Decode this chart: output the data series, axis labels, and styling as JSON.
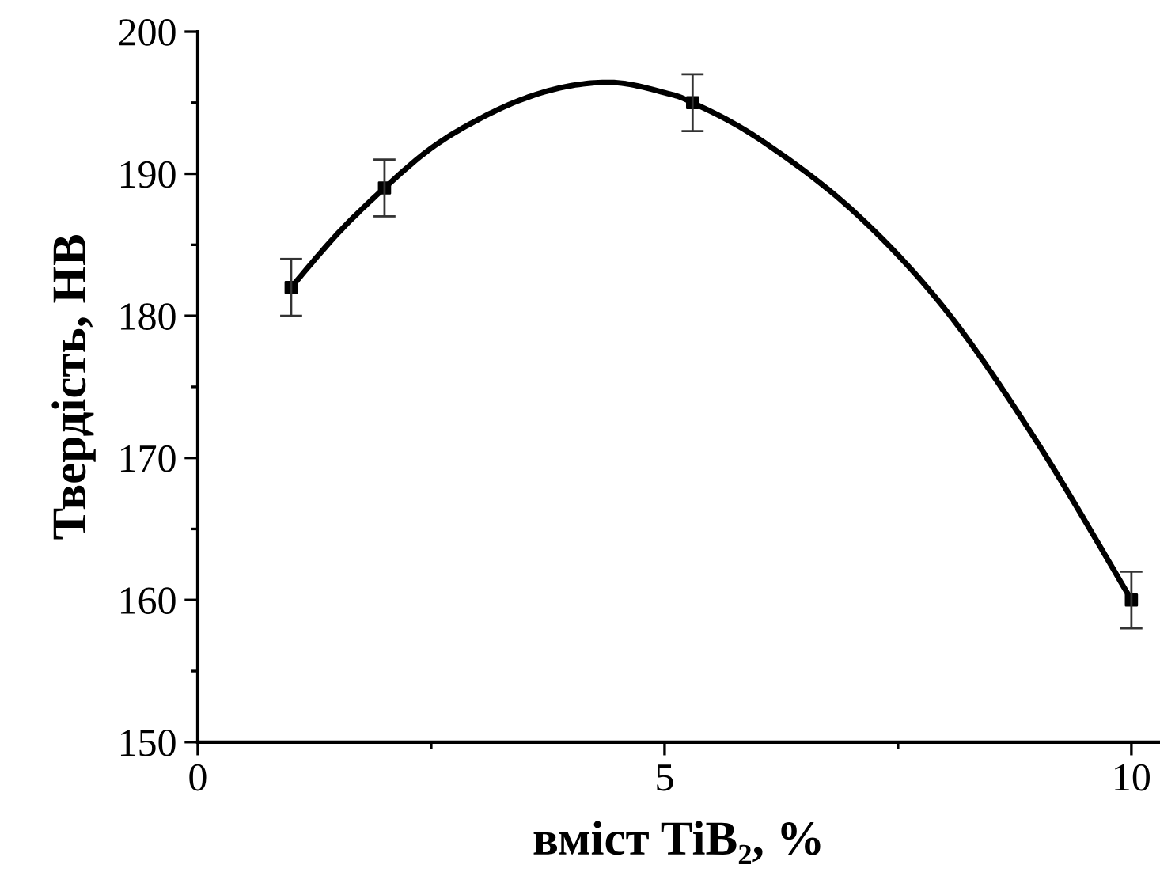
{
  "chart_data": {
    "type": "scatter",
    "xlabel": "вміст TiB₂, %",
    "ylabel": "Твердість, НВ",
    "xlim": [
      0,
      10.3
    ],
    "xticks": [
      0,
      5,
      10
    ],
    "ylim": [
      150,
      200
    ],
    "yticks": [
      150,
      160,
      170,
      180,
      190,
      200
    ],
    "grid": false,
    "marker": "square",
    "series": [
      {
        "type": "line",
        "color": "#000000",
        "marker": "none",
        "line_style": "solid",
        "x": [
          1,
          1.5,
          2,
          2.5,
          3,
          3.5,
          4,
          4.5,
          5,
          5.3,
          6,
          7,
          8,
          9,
          10
        ],
        "values": [
          182,
          185.8,
          189,
          191.8,
          193.8,
          195.3,
          196.2,
          196.4,
          195.7,
          195,
          192.5,
          187.5,
          180.5,
          171,
          160
        ]
      },
      {
        "color": "#000000",
        "x": [
          1,
          2,
          5.3,
          10
        ],
        "values": [
          182,
          189,
          195,
          160
        ],
        "errors": [
          2,
          2,
          2,
          2
        ]
      }
    ]
  }
}
